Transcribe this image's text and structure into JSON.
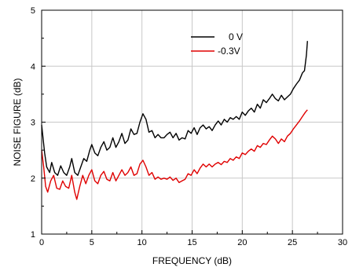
{
  "chart_data": {
    "type": "line",
    "xlabel": "FREQUENCY (dB)",
    "ylabel": "NOISE FIGURE (dB)",
    "xlim": [
      0,
      30
    ],
    "ylim": [
      1,
      5
    ],
    "xticks": [
      0,
      5,
      10,
      15,
      20,
      25,
      30
    ],
    "yticks": [
      1,
      2,
      3,
      4,
      5
    ],
    "grid": true,
    "legend_position": "top-center",
    "series": [
      {
        "name": "0 V",
        "color": "#000000",
        "points": [
          [
            0.0,
            2.95
          ],
          [
            0.3,
            2.45
          ],
          [
            0.5,
            2.2
          ],
          [
            0.8,
            2.1
          ],
          [
            1.0,
            2.28
          ],
          [
            1.3,
            2.1
          ],
          [
            1.6,
            2.05
          ],
          [
            1.9,
            2.22
          ],
          [
            2.2,
            2.1
          ],
          [
            2.5,
            2.05
          ],
          [
            2.8,
            2.2
          ],
          [
            3.0,
            2.35
          ],
          [
            3.3,
            2.1
          ],
          [
            3.6,
            2.05
          ],
          [
            3.9,
            2.2
          ],
          [
            4.2,
            2.35
          ],
          [
            4.5,
            2.3
          ],
          [
            4.8,
            2.5
          ],
          [
            5.0,
            2.6
          ],
          [
            5.3,
            2.45
          ],
          [
            5.6,
            2.4
          ],
          [
            5.9,
            2.55
          ],
          [
            6.2,
            2.65
          ],
          [
            6.5,
            2.5
          ],
          [
            6.8,
            2.55
          ],
          [
            7.1,
            2.72
          ],
          [
            7.4,
            2.55
          ],
          [
            7.7,
            2.65
          ],
          [
            8.0,
            2.8
          ],
          [
            8.3,
            2.62
          ],
          [
            8.6,
            2.68
          ],
          [
            8.9,
            2.88
          ],
          [
            9.2,
            2.78
          ],
          [
            9.5,
            2.8
          ],
          [
            9.8,
            3.0
          ],
          [
            10.1,
            3.15
          ],
          [
            10.4,
            3.05
          ],
          [
            10.7,
            2.82
          ],
          [
            11.0,
            2.85
          ],
          [
            11.3,
            2.72
          ],
          [
            11.6,
            2.78
          ],
          [
            11.9,
            2.72
          ],
          [
            12.2,
            2.72
          ],
          [
            12.5,
            2.78
          ],
          [
            12.8,
            2.82
          ],
          [
            13.1,
            2.72
          ],
          [
            13.4,
            2.8
          ],
          [
            13.7,
            2.68
          ],
          [
            14.0,
            2.72
          ],
          [
            14.3,
            2.7
          ],
          [
            14.6,
            2.85
          ],
          [
            14.9,
            2.8
          ],
          [
            15.2,
            2.9
          ],
          [
            15.5,
            2.78
          ],
          [
            15.8,
            2.9
          ],
          [
            16.1,
            2.95
          ],
          [
            16.4,
            2.88
          ],
          [
            16.7,
            2.92
          ],
          [
            17.0,
            2.85
          ],
          [
            17.3,
            2.95
          ],
          [
            17.6,
            3.02
          ],
          [
            17.9,
            2.95
          ],
          [
            18.2,
            3.05
          ],
          [
            18.5,
            3.0
          ],
          [
            18.8,
            3.08
          ],
          [
            19.1,
            3.05
          ],
          [
            19.4,
            3.1
          ],
          [
            19.7,
            3.05
          ],
          [
            20.0,
            3.18
          ],
          [
            20.3,
            3.12
          ],
          [
            20.6,
            3.2
          ],
          [
            20.9,
            3.25
          ],
          [
            21.2,
            3.18
          ],
          [
            21.5,
            3.32
          ],
          [
            21.8,
            3.25
          ],
          [
            22.1,
            3.4
          ],
          [
            22.4,
            3.35
          ],
          [
            22.7,
            3.42
          ],
          [
            23.0,
            3.5
          ],
          [
            23.3,
            3.42
          ],
          [
            23.6,
            3.38
          ],
          [
            23.9,
            3.48
          ],
          [
            24.2,
            3.4
          ],
          [
            24.5,
            3.45
          ],
          [
            24.8,
            3.5
          ],
          [
            25.1,
            3.6
          ],
          [
            25.4,
            3.68
          ],
          [
            25.7,
            3.75
          ],
          [
            26.0,
            3.88
          ],
          [
            26.2,
            3.92
          ],
          [
            26.4,
            4.2
          ],
          [
            26.5,
            4.45
          ]
        ]
      },
      {
        "name": "-0.3V",
        "color": "#e00000",
        "points": [
          [
            0.0,
            2.5
          ],
          [
            0.2,
            2.2
          ],
          [
            0.4,
            1.85
          ],
          [
            0.6,
            1.75
          ],
          [
            0.9,
            1.95
          ],
          [
            1.2,
            2.05
          ],
          [
            1.5,
            1.82
          ],
          [
            1.8,
            1.8
          ],
          [
            2.1,
            1.95
          ],
          [
            2.4,
            1.85
          ],
          [
            2.7,
            1.82
          ],
          [
            3.0,
            2.05
          ],
          [
            3.3,
            1.75
          ],
          [
            3.5,
            1.62
          ],
          [
            3.8,
            1.85
          ],
          [
            4.1,
            2.05
          ],
          [
            4.4,
            1.9
          ],
          [
            4.7,
            2.05
          ],
          [
            5.0,
            2.15
          ],
          [
            5.3,
            1.95
          ],
          [
            5.6,
            1.9
          ],
          [
            5.9,
            2.05
          ],
          [
            6.2,
            2.12
          ],
          [
            6.5,
            1.98
          ],
          [
            6.8,
            1.95
          ],
          [
            7.1,
            2.1
          ],
          [
            7.4,
            1.95
          ],
          [
            7.7,
            2.05
          ],
          [
            8.0,
            2.15
          ],
          [
            8.3,
            2.05
          ],
          [
            8.6,
            2.1
          ],
          [
            8.9,
            2.2
          ],
          [
            9.2,
            2.05
          ],
          [
            9.5,
            2.08
          ],
          [
            9.8,
            2.25
          ],
          [
            10.1,
            2.32
          ],
          [
            10.4,
            2.2
          ],
          [
            10.7,
            2.05
          ],
          [
            11.0,
            2.1
          ],
          [
            11.3,
            1.98
          ],
          [
            11.6,
            2.02
          ],
          [
            11.9,
            1.98
          ],
          [
            12.2,
            2.0
          ],
          [
            12.5,
            1.98
          ],
          [
            12.8,
            2.02
          ],
          [
            13.1,
            1.96
          ],
          [
            13.4,
            2.0
          ],
          [
            13.7,
            1.92
          ],
          [
            14.0,
            1.95
          ],
          [
            14.3,
            1.98
          ],
          [
            14.6,
            2.08
          ],
          [
            14.9,
            2.05
          ],
          [
            15.2,
            2.15
          ],
          [
            15.5,
            2.08
          ],
          [
            15.8,
            2.18
          ],
          [
            16.1,
            2.25
          ],
          [
            16.4,
            2.2
          ],
          [
            16.7,
            2.25
          ],
          [
            17.0,
            2.2
          ],
          [
            17.3,
            2.25
          ],
          [
            17.6,
            2.28
          ],
          [
            17.9,
            2.24
          ],
          [
            18.2,
            2.3
          ],
          [
            18.5,
            2.28
          ],
          [
            18.8,
            2.35
          ],
          [
            19.1,
            2.32
          ],
          [
            19.4,
            2.38
          ],
          [
            19.7,
            2.35
          ],
          [
            20.0,
            2.45
          ],
          [
            20.3,
            2.42
          ],
          [
            20.6,
            2.48
          ],
          [
            20.9,
            2.52
          ],
          [
            21.2,
            2.48
          ],
          [
            21.5,
            2.58
          ],
          [
            21.8,
            2.55
          ],
          [
            22.1,
            2.62
          ],
          [
            22.4,
            2.6
          ],
          [
            22.7,
            2.68
          ],
          [
            23.0,
            2.75
          ],
          [
            23.3,
            2.7
          ],
          [
            23.6,
            2.62
          ],
          [
            23.9,
            2.7
          ],
          [
            24.2,
            2.65
          ],
          [
            24.5,
            2.75
          ],
          [
            24.8,
            2.8
          ],
          [
            25.1,
            2.88
          ],
          [
            25.4,
            2.95
          ],
          [
            25.7,
            3.02
          ],
          [
            26.0,
            3.1
          ],
          [
            26.3,
            3.18
          ],
          [
            26.5,
            3.22
          ]
        ]
      }
    ]
  }
}
